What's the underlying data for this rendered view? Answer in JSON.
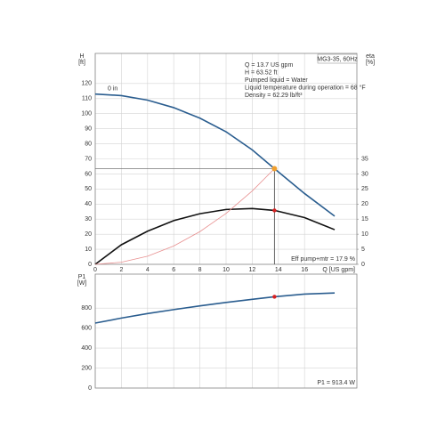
{
  "chart_data": [
    {
      "type": "line",
      "ylabel": "H",
      "yunit": "[ft]",
      "y2label": "eta",
      "y2unit": "[%]",
      "xlabel": "Q [US gpm]",
      "model": "MG3-35, 60Hz",
      "info": [
        "Q = 13.7 US gpm",
        "H = 63.52 ft",
        "Pumped liquid = Water",
        "Liquid temperature during operation = 68 °F",
        "Density = 62.29 lb/ft³"
      ],
      "annotation": "Eff pump+mtr = 17.9 %",
      "x": [
        0,
        2,
        4,
        6,
        8,
        10,
        12,
        13.7,
        16,
        18.3
      ],
      "xlim": [
        0,
        20
      ],
      "xticks": [
        0,
        2,
        4,
        6,
        8,
        10,
        12,
        14,
        16
      ],
      "ylim": [
        0,
        140
      ],
      "yticks": [
        0,
        10,
        20,
        30,
        40,
        50,
        60,
        70,
        80,
        90,
        100,
        110,
        120
      ],
      "y2lim": [
        0,
        70
      ],
      "y2ticks": [
        0,
        5,
        10,
        15,
        20,
        25,
        30,
        35
      ],
      "grid": true,
      "series": [
        {
          "name": "0 in",
          "color": "#2a5d8f",
          "values": [
            113,
            112,
            109,
            104,
            97,
            88,
            76,
            63.52,
            47,
            32
          ]
        },
        {
          "color": "#111111",
          "axis": "y2",
          "values": [
            0,
            6.5,
            11,
            14.5,
            16.8,
            18.2,
            18.5,
            17.9,
            15.5,
            11.5
          ]
        },
        {
          "color": "#e89090",
          "values": [
            0,
            1.4,
            5.4,
            12.2,
            21.7,
            33.8,
            48.7,
            63.52,
            null,
            null
          ]
        }
      ],
      "operating_point": {
        "x": 13.7,
        "y": 63.52,
        "efficiency": 17.9,
        "color": "#f0a030",
        "efficiency_color": "#d62020"
      }
    },
    {
      "type": "line",
      "ylabel": "P1",
      "yunit": "[W]",
      "annotation": "P1 = 913.4 W",
      "x": [
        0,
        2,
        4,
        6,
        8,
        10,
        12,
        13.7,
        16,
        18.3
      ],
      "xlim": [
        0,
        20
      ],
      "ylim": [
        0,
        1140
      ],
      "yticks": [
        0,
        200,
        400,
        600,
        800
      ],
      "grid": true,
      "series": [
        {
          "color": "#2a5d8f",
          "values": [
            650,
            700,
            745,
            785,
            822,
            857,
            888,
            913.4,
            940,
            951
          ]
        }
      ],
      "operating_point": {
        "x": 13.7,
        "y": 913.4,
        "color": "#d62020"
      }
    }
  ]
}
